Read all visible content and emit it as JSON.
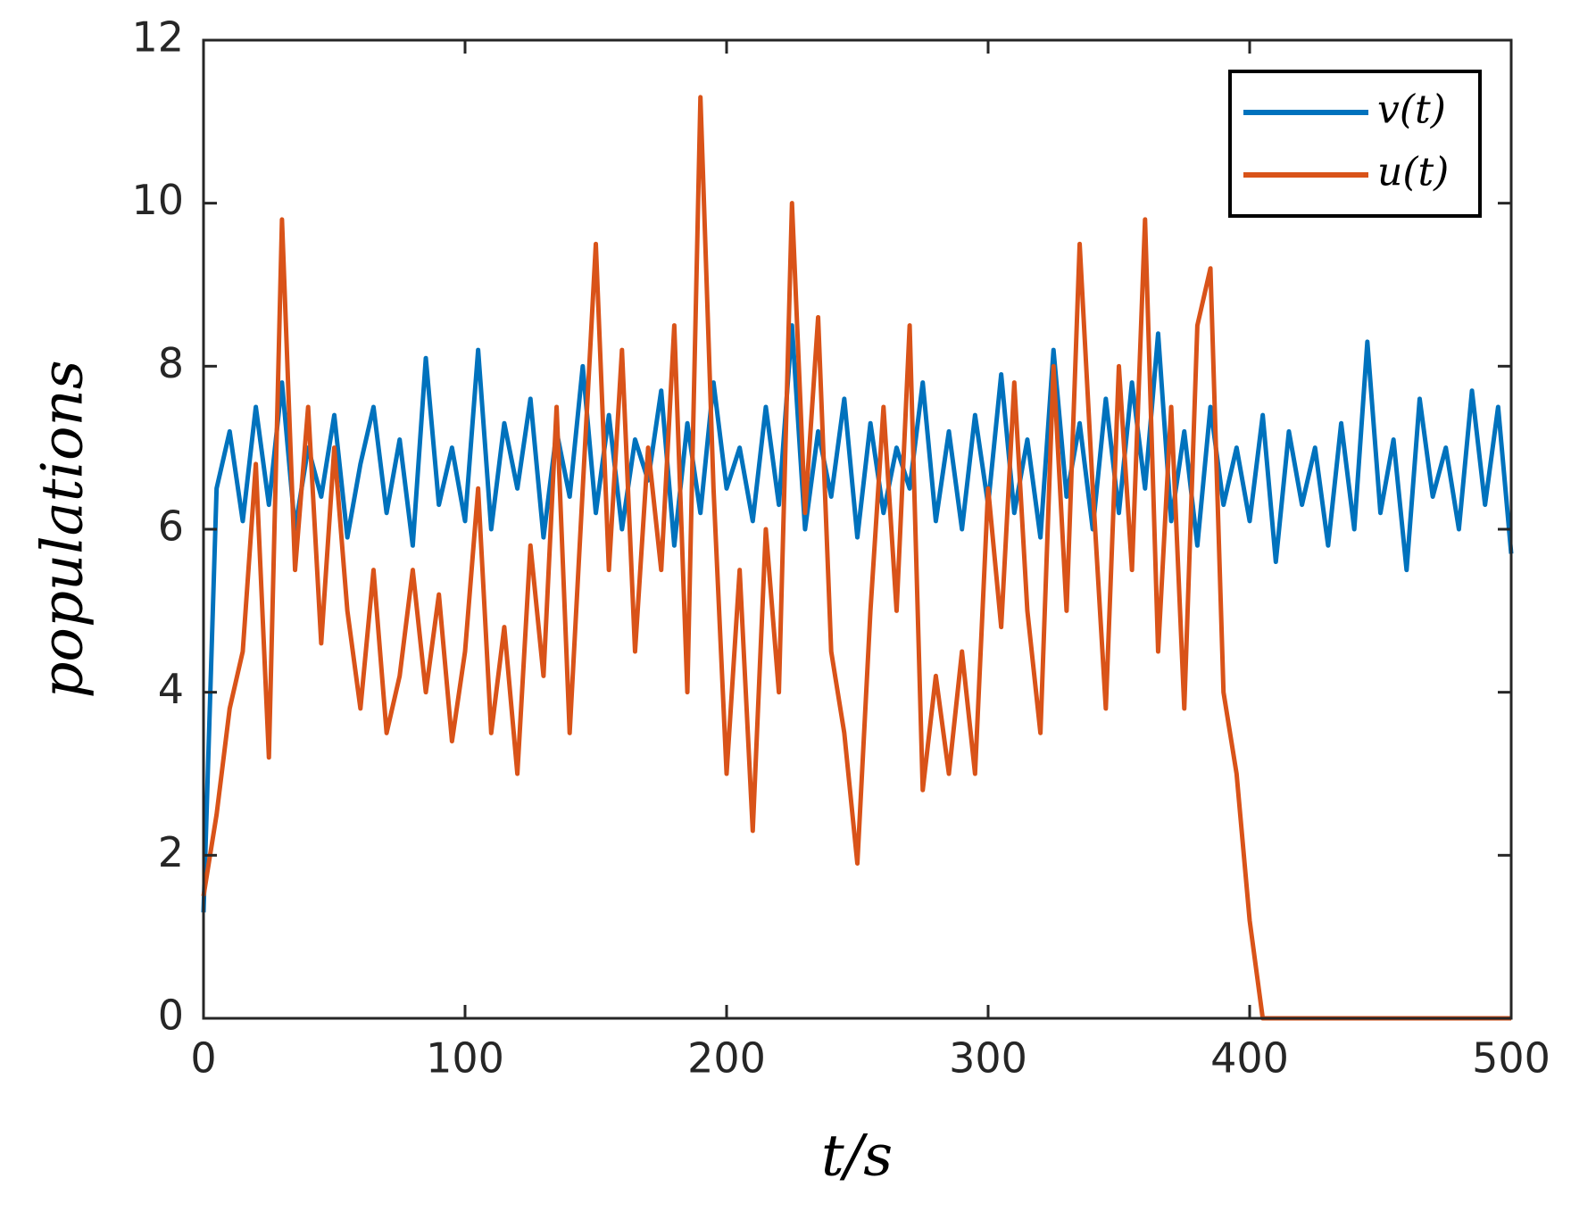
{
  "chart_data": {
    "type": "line",
    "xlabel": "t/s",
    "ylabel": "populations",
    "x": [
      0,
      5,
      10,
      15,
      20,
      25,
      30,
      35,
      40,
      45,
      50,
      55,
      60,
      65,
      70,
      75,
      80,
      85,
      90,
      95,
      100,
      105,
      110,
      115,
      120,
      125,
      130,
      135,
      140,
      145,
      150,
      155,
      160,
      165,
      170,
      175,
      180,
      185,
      190,
      195,
      200,
      205,
      210,
      215,
      220,
      225,
      230,
      235,
      240,
      245,
      250,
      255,
      260,
      265,
      270,
      275,
      280,
      285,
      290,
      295,
      300,
      305,
      310,
      315,
      320,
      325,
      330,
      335,
      340,
      345,
      350,
      355,
      360,
      365,
      370,
      375,
      380,
      385,
      390,
      395,
      400,
      405,
      410,
      415,
      420,
      425,
      430,
      435,
      440,
      445,
      450,
      455,
      460,
      465,
      470,
      475,
      480,
      485,
      490,
      495,
      500
    ],
    "series": [
      {
        "name": "v(t)",
        "color": "#0072bd",
        "values": [
          1.3,
          6.5,
          7.2,
          6.1,
          7.5,
          6.3,
          7.8,
          6.0,
          7.0,
          6.4,
          7.4,
          5.9,
          6.8,
          7.5,
          6.2,
          7.1,
          5.8,
          8.1,
          6.3,
          7.0,
          6.1,
          8.2,
          6.0,
          7.3,
          6.5,
          7.6,
          5.9,
          7.2,
          6.4,
          8.0,
          6.2,
          7.4,
          6.0,
          7.1,
          6.6,
          7.7,
          5.8,
          7.3,
          6.2,
          7.8,
          6.5,
          7.0,
          6.1,
          7.5,
          6.3,
          8.5,
          6.0,
          7.2,
          6.4,
          7.6,
          5.9,
          7.3,
          6.2,
          7.0,
          6.5,
          7.8,
          6.1,
          7.2,
          6.0,
          7.4,
          6.3,
          7.9,
          6.2,
          7.1,
          5.9,
          8.2,
          6.4,
          7.3,
          6.0,
          7.6,
          6.2,
          7.8,
          6.5,
          8.4,
          6.1,
          7.2,
          5.8,
          7.5,
          6.3,
          7.0,
          6.1,
          7.4,
          5.6,
          7.2,
          6.3,
          7.0,
          5.8,
          7.3,
          6.0,
          8.3,
          6.2,
          7.1,
          5.5,
          7.6,
          6.4,
          7.0,
          6.0,
          7.7,
          6.3,
          7.5,
          5.7
        ]
      },
      {
        "name": "u(t)",
        "color": "#d95319",
        "values": [
          1.5,
          2.5,
          3.8,
          4.5,
          6.8,
          3.2,
          9.8,
          5.5,
          7.5,
          4.6,
          7.0,
          5.0,
          3.8,
          5.5,
          3.5,
          4.2,
          5.5,
          4.0,
          5.2,
          3.4,
          4.5,
          6.5,
          3.5,
          4.8,
          3.0,
          5.8,
          4.2,
          7.5,
          3.5,
          6.5,
          9.5,
          5.5,
          8.2,
          4.5,
          7.0,
          5.5,
          8.5,
          4.0,
          11.3,
          6.5,
          3.0,
          5.5,
          2.3,
          6.0,
          4.0,
          10.0,
          6.2,
          8.6,
          4.5,
          3.5,
          1.9,
          5.0,
          7.5,
          5.0,
          8.5,
          2.8,
          4.2,
          3.0,
          4.5,
          3.0,
          6.5,
          4.8,
          7.8,
          5.0,
          3.5,
          8.0,
          5.0,
          9.5,
          6.5,
          3.8,
          8.0,
          5.5,
          9.8,
          4.5,
          7.5,
          3.8,
          8.5,
          9.2,
          4.0,
          3.0,
          1.2,
          0,
          0,
          0,
          0,
          0,
          0,
          0,
          0,
          0,
          0,
          0,
          0,
          0,
          0,
          0,
          0,
          0,
          0,
          0,
          0
        ]
      }
    ],
    "xlim": [
      0,
      500
    ],
    "xticks": [
      0,
      100,
      200,
      300,
      400,
      500
    ],
    "ylim": [
      0,
      12
    ],
    "yticks": [
      0,
      2,
      4,
      6,
      8,
      10,
      12
    ],
    "legend": "upper right"
  }
}
